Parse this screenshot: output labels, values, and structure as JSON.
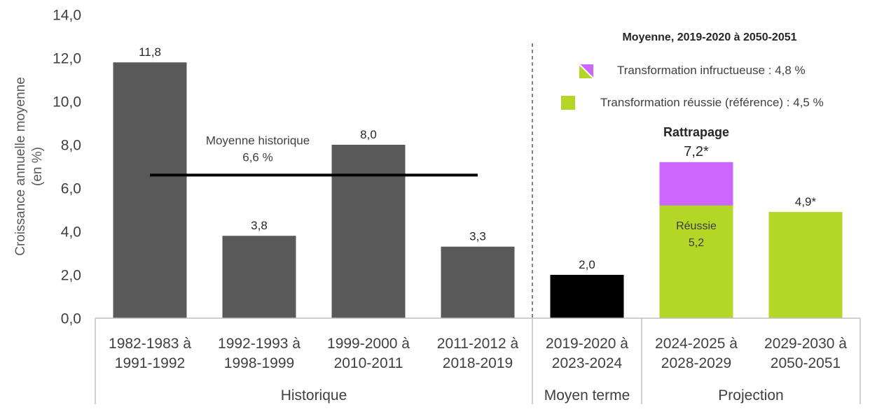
{
  "chart_data": {
    "type": "bar",
    "ylabel": [
      "Croissance annuelle moyenne",
      "(en %)"
    ],
    "ylim": [
      0,
      14
    ],
    "yticks": [
      0,
      2,
      4,
      6,
      8,
      10,
      12,
      14
    ],
    "ytick_labels": [
      "0,0",
      "2,0",
      "4,0",
      "6,0",
      "8,0",
      "10,0",
      "12,0",
      "14,0"
    ],
    "grid": false,
    "categories": [
      [
        "1982-1983 à",
        "1991-1992"
      ],
      [
        "1992-1993 à",
        "1998-1999"
      ],
      [
        "1999-2000 à",
        "2010-2011"
      ],
      [
        "2011-2012 à",
        "2018-2019"
      ],
      [
        "2019-2020 à",
        "2023-2024"
      ],
      [
        "2024-2025 à",
        "2028-2029"
      ],
      [
        "2029-2030 à",
        "2050-2051"
      ]
    ],
    "groups": [
      {
        "label": "Historique",
        "first_category": 0,
        "last_category": 3
      },
      {
        "label": "Moyen terme",
        "first_category": 4,
        "last_category": 4
      },
      {
        "label": "Projection",
        "first_category": 5,
        "last_category": 6
      }
    ],
    "series": [
      {
        "values": [
          11.8,
          3.8,
          8.0,
          3.3,
          null,
          null,
          null
        ],
        "color": "#595959"
      },
      {
        "values": [
          null,
          null,
          null,
          null,
          2.0,
          null,
          null
        ],
        "color": "#000000"
      },
      {
        "name": "Transformation infructueuse",
        "values": [
          null,
          null,
          null,
          null,
          null,
          7.2,
          null
        ],
        "color": "#cc66ff"
      },
      {
        "name": "Transformation réussie (référence)",
        "values": [
          null,
          null,
          null,
          null,
          null,
          5.2,
          4.9
        ],
        "color": "#b4d727"
      }
    ],
    "data_labels": [
      {
        "series": 0,
        "category": 0,
        "position": "above",
        "text": [
          "11,8"
        ]
      },
      {
        "series": 0,
        "category": 1,
        "position": "above",
        "text": [
          "3,8"
        ]
      },
      {
        "series": 0,
        "category": 2,
        "position": "above",
        "text": [
          "8,0"
        ]
      },
      {
        "series": 0,
        "category": 3,
        "position": "above",
        "text": [
          "3,3"
        ]
      },
      {
        "series": 1,
        "category": 4,
        "position": "above",
        "text": [
          "2,0"
        ]
      },
      {
        "series": 2,
        "category": 5,
        "position": "above",
        "emphasis": true,
        "text": [
          "Rattrapage",
          "7,2*"
        ]
      },
      {
        "series": 3,
        "category": 5,
        "position": "inside",
        "text": [
          "Réussie",
          "5,2"
        ]
      },
      {
        "series": 3,
        "category": 6,
        "position": "above",
        "text": [
          "4,9*"
        ]
      }
    ],
    "reference_line": {
      "value": 6.6,
      "from_category": 0,
      "to_category": 3,
      "label": [
        "Moyenne historique",
        "6,6 %"
      ],
      "color": "#000000"
    },
    "divider": {
      "after_category": 3,
      "style": "dashed"
    },
    "legend": {
      "title": "Moyenne, 2019-2020 à 2050-2051",
      "position": "top-right",
      "separator": " : ",
      "entries": [
        {
          "series": 2,
          "value": "4,8 %",
          "swatch_colors": [
            "#b4d727",
            "#cc66ff"
          ]
        },
        {
          "series": 3,
          "value": "4,5 %",
          "swatch_colors": [
            "#b4d727"
          ]
        }
      ]
    }
  }
}
